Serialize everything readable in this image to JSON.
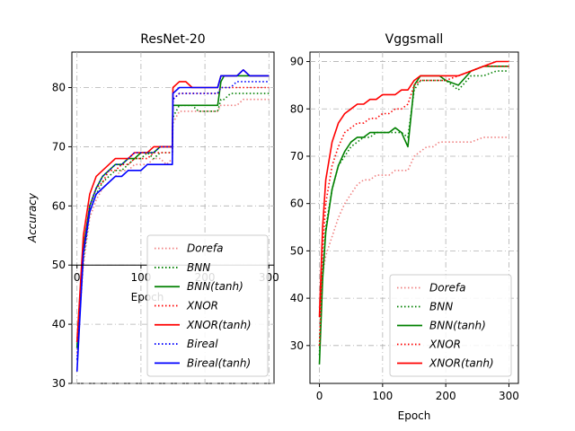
{
  "chart_data": [
    {
      "type": "line",
      "title": "ResNet-20",
      "xlabel": "Epoch",
      "ylabel": "Accuracy",
      "xlim": [
        -8,
        308
      ],
      "ylim": [
        30,
        86
      ],
      "xticks": [
        0,
        100,
        200,
        300
      ],
      "yticks": [
        30,
        40,
        50,
        60,
        70,
        80
      ],
      "grid": true,
      "legend_position": "lower-right",
      "series": [
        {
          "name": "Dorefa",
          "style": "dotted",
          "color": "#f08080",
          "x": [
            0,
            10,
            20,
            30,
            40,
            50,
            60,
            70,
            80,
            90,
            100,
            110,
            120,
            130,
            140,
            149,
            150,
            160,
            170,
            180,
            190,
            200,
            210,
            220,
            225,
            230,
            240,
            250,
            260,
            270,
            280,
            290,
            300
          ],
          "y": [
            35,
            50,
            58,
            61,
            63,
            64,
            65,
            66,
            66,
            67,
            67,
            67,
            68,
            68,
            67,
            68,
            74,
            76,
            76,
            76,
            76,
            76,
            76,
            76,
            77,
            77,
            77,
            77,
            78,
            78,
            78,
            78,
            78
          ]
        },
        {
          "name": "BNN",
          "style": "dotted",
          "color": "#008000",
          "x": [
            0,
            10,
            20,
            30,
            40,
            50,
            60,
            70,
            80,
            90,
            100,
            110,
            120,
            130,
            140,
            149,
            150,
            160,
            170,
            180,
            190,
            200,
            210,
            220,
            225,
            230,
            240,
            250,
            260,
            270,
            280,
            290,
            300
          ],
          "y": [
            36,
            51,
            59,
            62,
            64,
            65,
            66,
            66,
            67,
            68,
            68,
            69,
            68,
            69,
            69,
            69,
            75,
            77,
            77,
            77,
            76,
            76,
            76,
            76,
            78,
            78,
            79,
            79,
            79,
            79,
            79,
            79,
            79
          ]
        },
        {
          "name": "BNN(tanh)",
          "style": "solid",
          "color": "#008000",
          "x": [
            0,
            10,
            20,
            30,
            40,
            50,
            60,
            70,
            80,
            90,
            100,
            110,
            120,
            130,
            140,
            149,
            150,
            160,
            170,
            180,
            190,
            200,
            210,
            220,
            225,
            230,
            240,
            250,
            260,
            270,
            280,
            290,
            300
          ],
          "y": [
            36,
            53,
            60,
            63,
            65,
            66,
            67,
            67,
            68,
            68,
            69,
            69,
            69,
            70,
            70,
            70,
            77,
            77,
            77,
            77,
            77,
            77,
            77,
            77,
            81,
            82,
            82,
            82,
            82,
            82,
            82,
            82,
            82
          ]
        },
        {
          "name": "XNOR",
          "style": "dotted",
          "color": "#ff0000",
          "x": [
            0,
            10,
            20,
            30,
            40,
            50,
            60,
            70,
            80,
            90,
            100,
            110,
            120,
            130,
            140,
            149,
            150,
            160,
            170,
            180,
            190,
            200,
            210,
            220,
            225,
            230,
            240,
            250,
            260,
            270,
            280,
            290,
            300
          ],
          "y": [
            37,
            53,
            60,
            63,
            64,
            66,
            66,
            67,
            67,
            68,
            68,
            68,
            69,
            69,
            69,
            69,
            78,
            79,
            79,
            79,
            79,
            79,
            79,
            79,
            80,
            80,
            80,
            80,
            80,
            80,
            80,
            80,
            80
          ]
        },
        {
          "name": "XNOR(tanh)",
          "style": "solid",
          "color": "#ff0000",
          "x": [
            0,
            10,
            20,
            30,
            40,
            50,
            60,
            70,
            80,
            90,
            100,
            110,
            120,
            130,
            140,
            149,
            150,
            160,
            170,
            180,
            190,
            200,
            210,
            220,
            225,
            230,
            240,
            250,
            260,
            270,
            280,
            290,
            300
          ],
          "y": [
            37,
            55,
            62,
            65,
            66,
            67,
            68,
            68,
            68,
            69,
            69,
            69,
            70,
            70,
            70,
            70,
            80,
            81,
            81,
            80,
            80,
            80,
            80,
            80,
            82,
            82,
            82,
            82,
            83,
            82,
            82,
            82,
            82
          ]
        },
        {
          "name": "Bireal",
          "style": "dotted",
          "color": "#0000ff",
          "x": [
            0,
            10,
            20,
            30,
            40,
            50,
            60,
            70,
            80,
            90,
            100,
            110,
            120,
            130,
            140,
            149,
            150,
            160,
            170,
            180,
            190,
            200,
            210,
            220,
            225,
            230,
            240,
            250,
            260,
            270,
            280,
            290,
            300
          ],
          "y": [
            34,
            52,
            60,
            63,
            65,
            66,
            67,
            67,
            68,
            69,
            69,
            69,
            69,
            70,
            70,
            70,
            78,
            79,
            79,
            79,
            79,
            79,
            79,
            79,
            80,
            80,
            80,
            81,
            81,
            81,
            81,
            81,
            81
          ]
        },
        {
          "name": "Bireal(tanh)",
          "style": "solid",
          "color": "#0000ff",
          "x": [
            0,
            10,
            20,
            30,
            40,
            50,
            60,
            70,
            80,
            90,
            100,
            110,
            120,
            130,
            140,
            149,
            150,
            160,
            170,
            180,
            190,
            200,
            210,
            220,
            225,
            230,
            240,
            250,
            260,
            270,
            280,
            290,
            300
          ],
          "y": [
            32,
            52,
            59,
            62,
            63,
            64,
            65,
            65,
            66,
            66,
            66,
            67,
            67,
            67,
            67,
            67,
            79,
            80,
            80,
            80,
            80,
            80,
            80,
            80,
            82,
            82,
            82,
            82,
            83,
            82,
            82,
            82,
            82
          ]
        }
      ]
    },
    {
      "type": "line",
      "title": "Vggsmall",
      "xlabel": "Epoch",
      "ylabel": "",
      "xlim": [
        -15,
        315
      ],
      "ylim": [
        22,
        92
      ],
      "xticks": [
        0,
        100,
        200,
        300
      ],
      "yticks": [
        30,
        40,
        50,
        60,
        70,
        80,
        90
      ],
      "grid": true,
      "legend_position": "lower-right",
      "series": [
        {
          "name": "Dorefa",
          "style": "dotted",
          "color": "#f08080",
          "x": [
            0,
            5,
            10,
            20,
            30,
            40,
            50,
            60,
            70,
            80,
            90,
            100,
            110,
            120,
            130,
            140,
            150,
            160,
            170,
            180,
            190,
            200,
            220,
            240,
            260,
            280,
            300
          ],
          "y": [
            38,
            45,
            49,
            53,
            57,
            60,
            62,
            64,
            65,
            65,
            66,
            66,
            66,
            67,
            67,
            67,
            70,
            71,
            72,
            72,
            73,
            73,
            73,
            73,
            74,
            74,
            74
          ]
        },
        {
          "name": "BNN",
          "style": "dotted",
          "color": "#008000",
          "x": [
            0,
            5,
            10,
            20,
            30,
            40,
            50,
            60,
            70,
            80,
            90,
            100,
            110,
            120,
            130,
            140,
            150,
            160,
            170,
            180,
            190,
            200,
            220,
            240,
            260,
            280,
            300
          ],
          "y": [
            28,
            45,
            55,
            63,
            68,
            70,
            72,
            73,
            74,
            74,
            75,
            75,
            75,
            75,
            75,
            74,
            84,
            86,
            86,
            86,
            86,
            86,
            84,
            87,
            87,
            88,
            88
          ]
        },
        {
          "name": "BNN(tanh)",
          "style": "solid",
          "color": "#008000",
          "x": [
            0,
            5,
            10,
            20,
            30,
            40,
            50,
            60,
            70,
            80,
            90,
            100,
            110,
            120,
            130,
            140,
            150,
            160,
            170,
            180,
            190,
            200,
            220,
            240,
            260,
            280,
            300
          ],
          "y": [
            26,
            44,
            54,
            63,
            68,
            71,
            73,
            74,
            74,
            75,
            75,
            75,
            75,
            76,
            75,
            72,
            85,
            87,
            87,
            87,
            87,
            86,
            85,
            88,
            89,
            89,
            89
          ]
        },
        {
          "name": "XNOR",
          "style": "dotted",
          "color": "#ff0000",
          "x": [
            0,
            5,
            10,
            20,
            30,
            40,
            50,
            60,
            70,
            80,
            90,
            100,
            110,
            120,
            130,
            140,
            150,
            160,
            170,
            180,
            190,
            200,
            220,
            240,
            260,
            280,
            300
          ],
          "y": [
            30,
            50,
            60,
            68,
            72,
            75,
            76,
            77,
            77,
            78,
            78,
            79,
            79,
            80,
            80,
            81,
            85,
            86,
            86,
            86,
            86,
            86,
            87,
            88,
            89,
            89,
            89
          ]
        },
        {
          "name": "XNOR(tanh)",
          "style": "solid",
          "color": "#ff0000",
          "x": [
            0,
            5,
            10,
            20,
            30,
            40,
            50,
            60,
            70,
            80,
            90,
            100,
            110,
            120,
            130,
            140,
            150,
            160,
            170,
            180,
            190,
            200,
            220,
            240,
            260,
            280,
            300
          ],
          "y": [
            36,
            55,
            65,
            73,
            77,
            79,
            80,
            81,
            81,
            82,
            82,
            83,
            83,
            83,
            84,
            84,
            86,
            87,
            87,
            87,
            87,
            87,
            87,
            88,
            89,
            90,
            90
          ]
        }
      ]
    }
  ]
}
